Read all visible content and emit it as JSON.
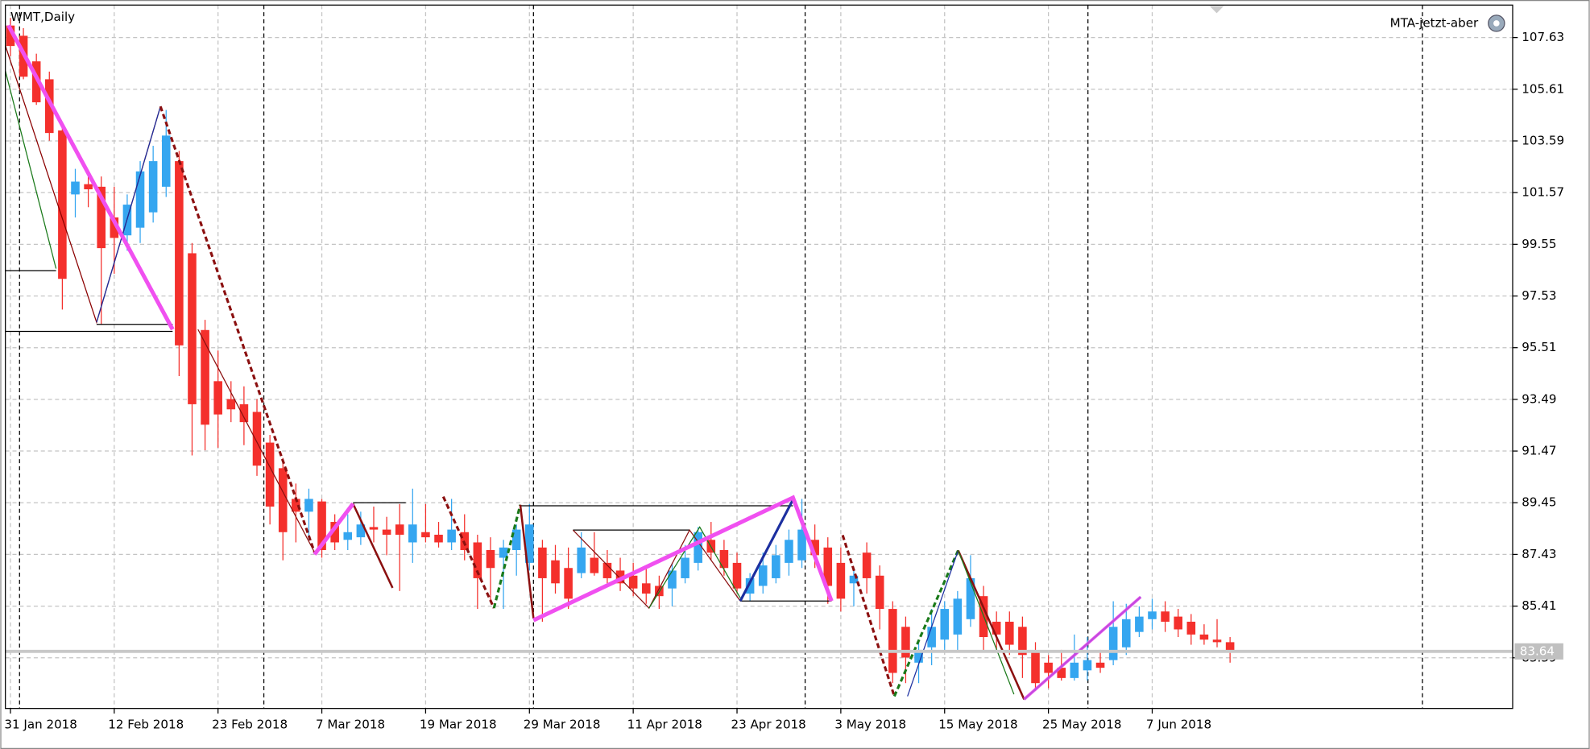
{
  "chart_data": {
    "type": "candlestick",
    "title": "WMT,Daily",
    "expert_label": "MTA-jetzt-aber",
    "categories": [
      "31 Jan 2018",
      null,
      null,
      null,
      null,
      null,
      null,
      null,
      "12 Feb 2018",
      null,
      null,
      null,
      null,
      null,
      null,
      null,
      "23 Feb 2018",
      null,
      null,
      null,
      null,
      null,
      null,
      null,
      "7 Mar 2018",
      null,
      null,
      null,
      null,
      null,
      null,
      null,
      "19 Mar 2018",
      null,
      null,
      null,
      null,
      null,
      null,
      null,
      "29 Mar 2018",
      null,
      null,
      null,
      null,
      null,
      null,
      null,
      "11 Apr 2018",
      null,
      null,
      null,
      null,
      null,
      null,
      null,
      "23 Apr 2018",
      null,
      null,
      null,
      null,
      null,
      null,
      null,
      "3 May 2018",
      null,
      null,
      null,
      null,
      null,
      null,
      null,
      "15 May 2018",
      null,
      null,
      null,
      null,
      null,
      null,
      null,
      "25 May 2018",
      null,
      null,
      null,
      null,
      null,
      null,
      null,
      "7 Jun 2018",
      null,
      null,
      null,
      null,
      null,
      null
    ],
    "open": [
      108.1,
      107.7,
      106.7,
      106.0,
      104.0,
      101.5,
      101.9,
      101.8,
      100.6,
      99.9,
      100.2,
      100.8,
      101.8,
      102.8,
      99.2,
      96.2,
      94.2,
      93.5,
      93.3,
      93.0,
      91.8,
      90.8,
      89.6,
      89.1,
      89.5,
      88.7,
      88.0,
      88.1,
      88.5,
      88.4,
      88.6,
      87.9,
      88.3,
      88.2,
      87.9,
      88.3,
      87.9,
      87.6,
      87.3,
      87.6,
      87.1,
      87.7,
      87.2,
      86.9,
      86.7,
      87.3,
      87.1,
      86.8,
      86.6,
      86.3,
      86.2,
      86.1,
      86.5,
      87.1,
      88.0,
      87.6,
      87.1,
      85.9,
      86.2,
      86.5,
      87.1,
      87.2,
      88.0,
      87.7,
      87.1,
      86.3,
      87.5,
      86.6,
      85.3,
      84.6,
      83.2,
      83.8,
      84.1,
      84.3,
      84.9,
      85.8,
      84.8,
      84.8,
      84.6,
      83.6,
      83.2,
      83.0,
      82.6,
      82.9,
      83.2,
      83.3,
      83.8,
      84.4,
      84.9,
      85.2,
      85.0,
      84.8,
      84.3,
      84.1,
      84.0
    ],
    "high": [
      108.4,
      108.0,
      107.0,
      106.3,
      104.3,
      102.5,
      102.2,
      102.2,
      101.8,
      101.5,
      102.8,
      103.4,
      104.8,
      103.2,
      99.6,
      96.6,
      95.4,
      94.2,
      94.0,
      93.5,
      92.1,
      91.2,
      90.2,
      90.0,
      89.6,
      89.0,
      89.0,
      89.1,
      89.3,
      88.9,
      89.4,
      90.0,
      89.4,
      88.7,
      89.6,
      89.0,
      88.2,
      88.1,
      88.0,
      88.6,
      89.4,
      88.0,
      87.8,
      87.7,
      88.3,
      88.3,
      87.6,
      87.3,
      87.1,
      87.0,
      86.6,
      87.1,
      87.8,
      88.5,
      88.7,
      88.0,
      87.5,
      86.7,
      87.5,
      87.8,
      88.4,
      89.6,
      88.6,
      88.1,
      87.7,
      86.9,
      87.9,
      87.0,
      85.6,
      85.0,
      84.0,
      85.3,
      85.6,
      86.0,
      87.4,
      86.2,
      85.2,
      85.2,
      85.0,
      84.0,
      83.5,
      83.7,
      84.3,
      84.2,
      83.7,
      85.6,
      85.5,
      85.4,
      85.7,
      85.6,
      85.3,
      85.1,
      84.7,
      84.9,
      84.2
    ],
    "low": [
      106.9,
      106.0,
      105.0,
      103.6,
      97.0,
      100.6,
      101.0,
      96.4,
      98.4,
      99.3,
      99.6,
      100.4,
      101.4,
      94.4,
      91.3,
      91.5,
      91.6,
      92.6,
      91.7,
      90.5,
      88.6,
      87.2,
      87.9,
      88.0,
      87.3,
      87.6,
      87.6,
      87.8,
      87.9,
      87.4,
      86.0,
      87.1,
      87.9,
      87.7,
      87.6,
      87.2,
      85.3,
      85.6,
      85.3,
      86.6,
      86.8,
      84.8,
      85.9,
      85.3,
      86.5,
      86.6,
      86.3,
      86.0,
      85.8,
      85.5,
      85.3,
      85.4,
      86.3,
      86.8,
      87.2,
      86.6,
      85.9,
      85.6,
      85.9,
      86.3,
      86.6,
      86.9,
      86.9,
      85.5,
      85.2,
      85.4,
      85.9,
      84.5,
      82.4,
      82.4,
      82.4,
      83.1,
      83.6,
      83.6,
      84.6,
      83.6,
      83.7,
      83.5,
      82.6,
      82.1,
      82.2,
      82.5,
      82.5,
      82.5,
      82.8,
      83.1,
      83.5,
      84.2,
      84.5,
      84.4,
      84.2,
      83.9,
      83.9,
      83.8,
      83.2
    ],
    "close": [
      107.3,
      106.1,
      105.1,
      103.9,
      98.2,
      102.0,
      101.7,
      99.4,
      99.8,
      101.1,
      102.4,
      102.8,
      103.8,
      95.6,
      93.3,
      92.5,
      92.9,
      93.1,
      92.6,
      90.9,
      89.3,
      88.3,
      89.1,
      89.6,
      87.6,
      87.9,
      88.3,
      88.6,
      88.4,
      88.2,
      88.2,
      88.6,
      88.1,
      87.9,
      88.4,
      87.6,
      86.5,
      86.9,
      87.7,
      88.4,
      88.6,
      86.5,
      86.3,
      85.7,
      87.7,
      86.7,
      86.5,
      86.3,
      86.1,
      85.9,
      85.8,
      86.8,
      87.3,
      88.3,
      87.5,
      86.9,
      86.1,
      86.5,
      87.0,
      87.4,
      88.0,
      88.4,
      87.4,
      86.2,
      85.7,
      86.6,
      86.5,
      85.3,
      82.8,
      83.4,
      83.7,
      84.6,
      85.3,
      85.7,
      86.5,
      84.2,
      84.3,
      83.9,
      83.5,
      82.4,
      82.8,
      82.6,
      83.2,
      83.3,
      83.0,
      84.6,
      84.9,
      85.0,
      85.2,
      84.8,
      84.5,
      84.3,
      84.1,
      84.0,
      83.64
    ],
    "up_color": "#35a6f0",
    "down_color": "#f4302c",
    "last_price": 83.64,
    "ylim": [
      81.41,
      108.9
    ],
    "yticks": [
      83.39,
      85.41,
      87.43,
      89.45,
      91.47,
      93.49,
      95.51,
      97.53,
      99.55,
      101.57,
      103.59,
      105.61,
      107.63
    ],
    "grid": true
  }
}
